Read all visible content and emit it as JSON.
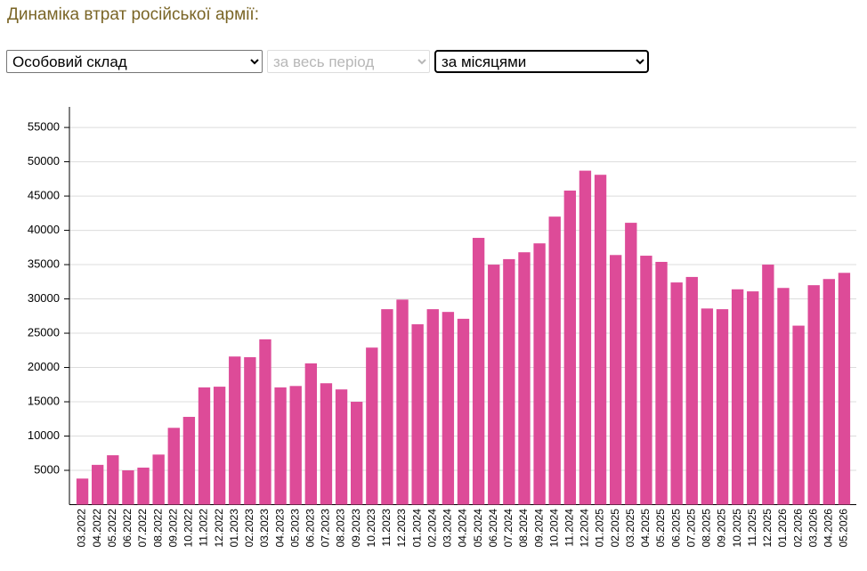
{
  "header": {
    "title": "Динаміка втрат російської армії:"
  },
  "controls": [
    "Особовий склад",
    "за весь період",
    "за місяцями"
  ],
  "chart_data": {
    "type": "bar",
    "color": "#dd4b98",
    "grid": true,
    "ylim": [
      0,
      58000
    ],
    "yticks": [
      5000,
      10000,
      15000,
      20000,
      25000,
      30000,
      35000,
      40000,
      45000,
      50000,
      55000
    ],
    "categories": [
      "03.2022",
      "04.2022",
      "05.2022",
      "06.2022",
      "07.2022",
      "08.2022",
      "09.2022",
      "10.2022",
      "11.2022",
      "12.2022",
      "01.2023",
      "02.2023",
      "03.2023",
      "04.2023",
      "05.2023",
      "06.2023",
      "07.2023",
      "08.2023",
      "09.2023",
      "10.2023",
      "11.2023",
      "12.2023",
      "01.2024",
      "02.2024",
      "03.2024",
      "04.2024",
      "05.2024",
      "06.2024",
      "07.2024",
      "08.2024",
      "09.2024",
      "10.2024",
      "11.2024",
      "12.2024",
      "01.2025",
      "02.2025",
      "03.2025",
      "04.2025",
      "05.2025",
      "06.2025",
      "07.2025",
      "08.2025",
      "09.2025",
      "10.2025",
      "11.2025",
      "12.2025",
      "01.2026",
      "02.2026",
      "03.2026",
      "04.2026",
      "05.2026"
    ],
    "values": [
      3800,
      5800,
      7200,
      5000,
      5400,
      7300,
      11200,
      12800,
      17100,
      17200,
      21600,
      21500,
      24100,
      17100,
      17300,
      20600,
      17700,
      16800,
      15000,
      22900,
      28500,
      29900,
      26300,
      28500,
      28100,
      27100,
      38900,
      35000,
      35800,
      36800,
      38100,
      42000,
      45800,
      48700,
      48100,
      36400,
      41100,
      36300,
      35400,
      32400,
      33200,
      28600,
      28500,
      31400,
      31100,
      35000,
      31600,
      26100,
      32000,
      32900,
      33800
    ]
  }
}
